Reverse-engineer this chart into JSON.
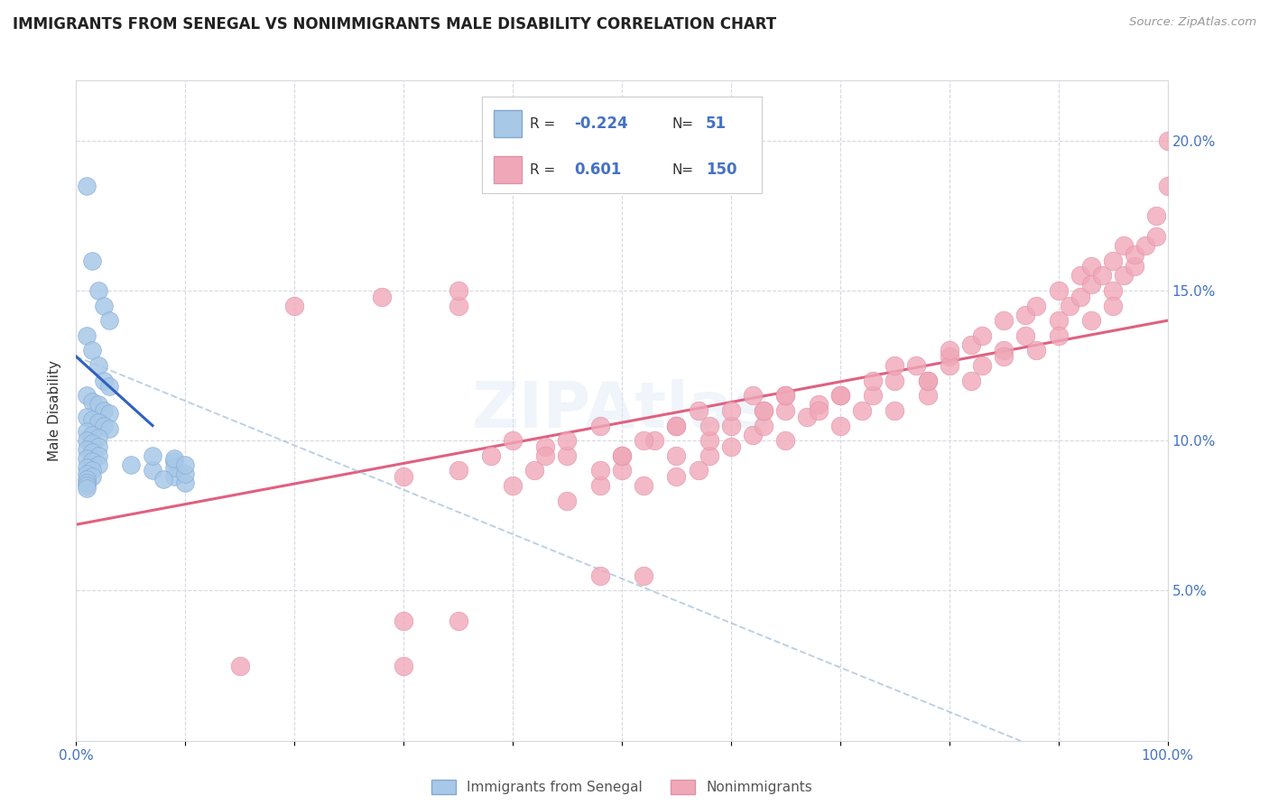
{
  "title": "IMMIGRANTS FROM SENEGAL VS NONIMMIGRANTS MALE DISABILITY CORRELATION CHART",
  "source": "Source: ZipAtlas.com",
  "ylabel": "Male Disability",
  "legend_labels": [
    "Immigrants from Senegal",
    "Nonimmigrants"
  ],
  "blue_color": "#a8c8e8",
  "blue_line_color": "#3060c0",
  "pink_color": "#f0a8b8",
  "pink_line_color": "#e06080",
  "dashed_line_color": "#a0bcd8",
  "watermark": "ZIPAtlas",
  "blue_scatter_x": [
    1.0,
    1.5,
    2.0,
    2.5,
    3.0,
    1.0,
    1.5,
    2.0,
    2.5,
    3.0,
    1.0,
    1.5,
    2.0,
    2.5,
    3.0,
    1.0,
    1.5,
    2.0,
    2.5,
    3.0,
    1.0,
    1.5,
    2.0,
    1.0,
    1.5,
    2.0,
    1.0,
    1.5,
    2.0,
    1.0,
    1.5,
    2.0,
    1.0,
    1.5,
    1.0,
    1.5,
    1.0,
    1.0,
    1.0,
    1.0,
    5.0,
    7.0,
    9.0,
    7.0,
    9.0,
    10.0,
    9.0,
    10.0,
    8.0,
    9.0,
    10.0
  ],
  "blue_scatter_y": [
    18.5,
    16.0,
    15.0,
    14.5,
    14.0,
    13.5,
    13.0,
    12.5,
    12.0,
    11.8,
    11.5,
    11.3,
    11.2,
    11.0,
    10.9,
    10.8,
    10.7,
    10.6,
    10.5,
    10.4,
    10.3,
    10.2,
    10.1,
    10.0,
    9.9,
    9.8,
    9.7,
    9.6,
    9.5,
    9.4,
    9.3,
    9.2,
    9.1,
    9.0,
    8.9,
    8.8,
    8.7,
    8.6,
    8.5,
    8.4,
    9.2,
    9.0,
    8.8,
    9.5,
    9.3,
    8.6,
    9.1,
    8.9,
    8.7,
    9.4,
    9.2
  ],
  "pink_scatter_x": [
    20.0,
    15.0,
    30.0,
    28.0,
    35.0,
    35.0,
    45.0,
    48.0,
    50.0,
    52.0,
    55.0,
    55.0,
    57.0,
    58.0,
    60.0,
    62.0,
    63.0,
    65.0,
    65.0,
    67.0,
    68.0,
    70.0,
    70.0,
    72.0,
    73.0,
    75.0,
    75.0,
    77.0,
    78.0,
    78.0,
    80.0,
    80.0,
    80.0,
    82.0,
    82.0,
    83.0,
    83.0,
    85.0,
    85.0,
    85.0,
    87.0,
    87.0,
    88.0,
    88.0,
    90.0,
    90.0,
    90.0,
    91.0,
    92.0,
    92.0,
    93.0,
    93.0,
    93.0,
    94.0,
    95.0,
    95.0,
    95.0,
    96.0,
    96.0,
    97.0,
    97.0,
    98.0,
    99.0,
    99.0,
    100.0,
    100.0,
    40.0,
    42.0,
    45.0,
    43.0,
    48.0,
    50.0,
    53.0,
    55.0,
    58.0,
    60.0,
    63.0,
    65.0,
    68.0,
    70.0,
    73.0,
    75.0,
    78.0,
    35.0,
    38.0,
    40.0,
    43.0,
    45.0,
    48.0,
    50.0,
    52.0,
    55.0,
    57.0,
    58.0,
    60.0,
    62.0,
    63.0,
    65.0,
    30.0,
    35.0,
    30.0,
    48.0,
    52.0
  ],
  "pink_scatter_y": [
    14.5,
    2.5,
    2.5,
    14.8,
    14.5,
    15.0,
    8.0,
    8.5,
    9.0,
    8.5,
    8.8,
    9.5,
    9.0,
    9.5,
    9.8,
    10.2,
    10.5,
    10.0,
    11.0,
    10.8,
    11.2,
    11.5,
    10.5,
    11.0,
    11.5,
    12.0,
    11.0,
    12.5,
    11.5,
    12.0,
    12.8,
    12.5,
    13.0,
    12.0,
    13.2,
    12.5,
    13.5,
    13.0,
    12.8,
    14.0,
    13.5,
    14.2,
    13.0,
    14.5,
    14.0,
    13.5,
    15.0,
    14.5,
    14.8,
    15.5,
    14.0,
    15.2,
    15.8,
    15.5,
    15.0,
    16.0,
    14.5,
    15.5,
    16.5,
    15.8,
    16.2,
    16.5,
    17.5,
    16.8,
    18.5,
    20.0,
    8.5,
    9.0,
    9.5,
    9.8,
    9.0,
    9.5,
    10.0,
    10.5,
    10.0,
    10.5,
    11.0,
    11.5,
    11.0,
    11.5,
    12.0,
    12.5,
    12.0,
    9.0,
    9.5,
    10.0,
    9.5,
    10.0,
    10.5,
    9.5,
    10.0,
    10.5,
    11.0,
    10.5,
    11.0,
    11.5,
    11.0,
    11.5,
    8.8,
    4.0,
    4.0,
    5.5,
    5.5
  ],
  "xlim": [
    0,
    100
  ],
  "ylim": [
    0,
    22
  ],
  "ytick_values": [
    5.0,
    10.0,
    15.0,
    20.0
  ],
  "ytick_labels": [
    "5.0%",
    "10.0%",
    "15.0%",
    "20.0%"
  ],
  "xtick_positions": [
    0,
    10,
    20,
    30,
    40,
    50,
    60,
    70,
    80,
    90,
    100
  ],
  "xtick_labels_show": [
    "0.0%",
    "",
    "",
    "",
    "",
    "",
    "",
    "",
    "",
    "",
    "100.0%"
  ],
  "background_color": "#ffffff",
  "grid_color": "#d8d8e0",
  "pink_trend_start_x": 0,
  "pink_trend_start_y": 7.2,
  "pink_trend_end_x": 100,
  "pink_trend_end_y": 14.0,
  "blue_solid_start_x": 0,
  "blue_solid_start_y": 12.8,
  "blue_solid_end_x": 7,
  "blue_solid_end_y": 10.5,
  "blue_dash_start_x": 0,
  "blue_dash_start_y": 12.8,
  "blue_dash_end_x": 100,
  "blue_dash_end_y": -2.0
}
